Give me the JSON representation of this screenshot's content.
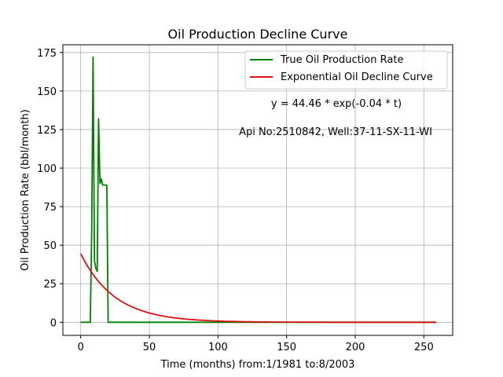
{
  "chart_data": {
    "type": "line",
    "title": "Oil Production Decline Curve",
    "xlabel": "Time (months) from:1/1981 to:8/2003",
    "ylabel": "Oil Production Rate (bbl/month)",
    "xlim": [
      -13,
      271
    ],
    "ylim": [
      -8.5,
      180
    ],
    "xticks": [
      0,
      50,
      100,
      150,
      200,
      250
    ],
    "yticks": [
      0,
      25,
      50,
      75,
      100,
      125,
      150,
      175
    ],
    "grid": true,
    "legend_position": "upper-right",
    "annotations": [
      "y = 44.46 * exp(-0.04 * t)",
      "Api No:2510842, Well:37-11-SX-11-WI"
    ],
    "series": [
      {
        "name": "True Oil Production Rate",
        "color": "#008000",
        "x": [
          0,
          7,
          8,
          9,
          10,
          11,
          12,
          13,
          14,
          15,
          16,
          17,
          18,
          19,
          20,
          259
        ],
        "y": [
          0,
          0,
          60,
          172,
          40,
          35,
          33,
          132,
          90,
          93,
          89,
          89,
          89,
          89,
          0,
          0
        ]
      },
      {
        "name": "Exponential Oil Decline Curve",
        "color": "#dd1111",
        "formula": {
          "a": 44.46,
          "b": 0.04
        },
        "x_range": [
          0,
          259
        ]
      }
    ]
  }
}
